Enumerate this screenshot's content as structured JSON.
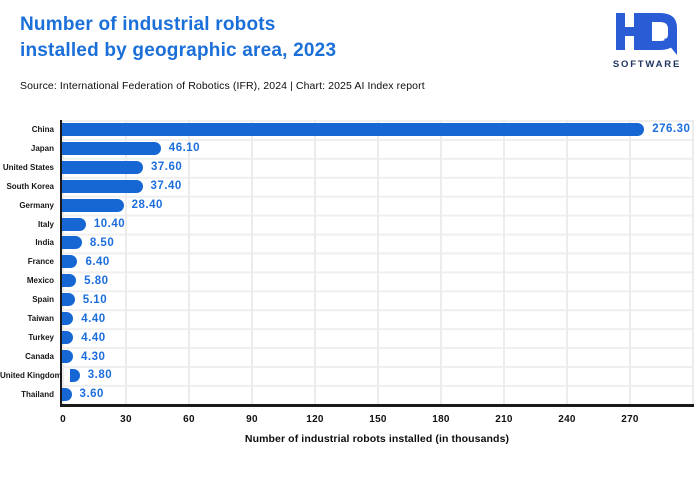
{
  "header": {
    "title_line1": "Number of industrial robots",
    "title_line2": "installed by geographic area, 2023",
    "source": "Source: International Federation of Robotics (IFR), 2024 | Chart: 2025 AI Index report",
    "logo": {
      "mark": "HQ",
      "subtext": "SOFTWARE"
    }
  },
  "colors": {
    "title_blue": "#1b6fd8",
    "bar_blue": "#1667d3",
    "value_label_blue": "#1c6edd",
    "logo_blue": "#2a5cd6",
    "logo_navy": "#21355f",
    "axis_dark": "#1a1a1a",
    "gridline": "#ececec",
    "background": "#ffffff"
  },
  "chart_data": {
    "type": "bar",
    "orientation": "horizontal",
    "title": "Number of industrial robots installed by geographic area, 2023",
    "categories": [
      "China",
      "Japan",
      "United States",
      "South Korea",
      "Germany",
      "Italy",
      "India",
      "France",
      "Mexico",
      "Spain",
      "Taiwan",
      "Turkey",
      "Canada",
      "United Kingdom",
      "Thailand"
    ],
    "values": [
      276.3,
      46.1,
      37.6,
      37.4,
      28.4,
      10.4,
      8.5,
      6.4,
      5.8,
      5.1,
      4.4,
      4.4,
      4.3,
      3.8,
      3.6
    ],
    "value_labels": [
      "276.30",
      "46.10",
      "37.60",
      "37.40",
      "28.40",
      "10.40",
      "8.50",
      "6.40",
      "5.80",
      "5.10",
      "4.40",
      "4.40",
      "4.30",
      "3.80",
      "3.60"
    ],
    "xlabel": "Number of industrial robots installed (in thousands)",
    "ylabel": "",
    "x_ticks": [
      0,
      30,
      60,
      90,
      120,
      150,
      180,
      210,
      240,
      270
    ],
    "xlim": [
      0,
      300
    ],
    "grid": true,
    "legend": false,
    "bar_color": "#1667d3"
  }
}
